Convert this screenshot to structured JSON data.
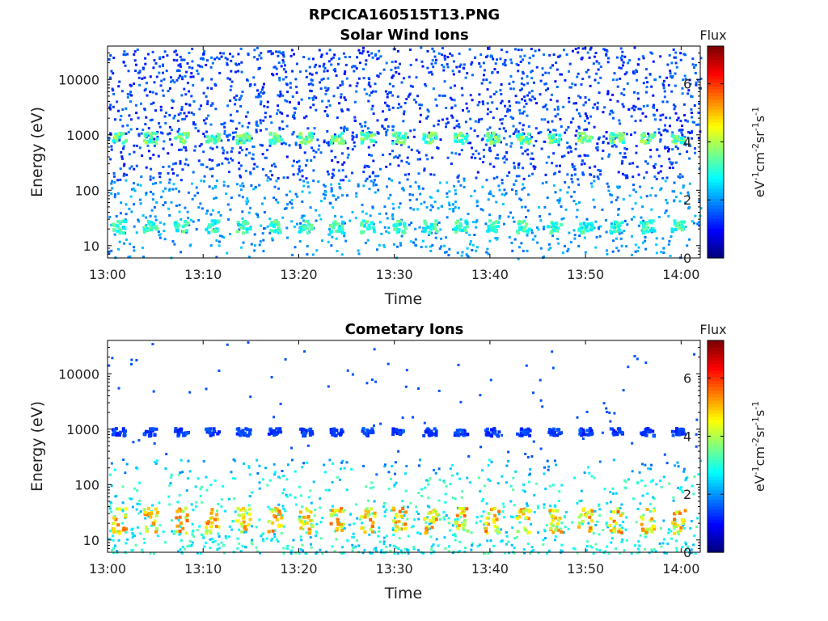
{
  "figure_title": "RPCICA160515T13.PNG",
  "chart_data": [
    {
      "type": "heatmap",
      "title": "Solar Wind Ions",
      "xlabel": "Time",
      "ylabel": "Energy (eV)",
      "y_scale": "log",
      "xlim": [
        "13:00",
        "14:02"
      ],
      "ylim": [
        6,
        40000
      ],
      "x_ticks": [
        "13:00",
        "13:10",
        "13:20",
        "13:30",
        "13:40",
        "13:50",
        "14:00"
      ],
      "y_ticks": [
        "10",
        "100",
        "1000",
        "10000"
      ],
      "y_tick_values": [
        10,
        100,
        1000,
        10000
      ],
      "colorbar": {
        "title": "Flux",
        "label": {
          "base": "eV",
          "sup1": "-1",
          "mid1": "cm",
          "sup2": "-2",
          "mid2": "sr",
          "sup3": "-1",
          "mid3": "s",
          "sup4": "-1"
        },
        "range": [
          0,
          7.3
        ],
        "ticks": [
          "0",
          "2",
          "4",
          "6"
        ],
        "tick_values": [
          0,
          2,
          4,
          6
        ],
        "colormap": "jet"
      },
      "features": {
        "sweep_period_min": 3.25,
        "bands": [
          {
            "energy_low": 750,
            "energy_high": 1150,
            "flux": 3.6,
            "note": "recurring solar wind proton peak"
          },
          {
            "energy_low": 18,
            "energy_high": 30,
            "flux": 3.2
          }
        ],
        "background_flux": 1.4,
        "background_extent": [
          6,
          40000
        ]
      }
    },
    {
      "type": "heatmap",
      "title": "Cometary Ions",
      "xlabel": "Time",
      "ylabel": "Energy (eV)",
      "y_scale": "log",
      "xlim": [
        "13:00",
        "14:02"
      ],
      "ylim": [
        6,
        40000
      ],
      "x_ticks": [
        "13:00",
        "13:10",
        "13:20",
        "13:30",
        "13:40",
        "13:50",
        "14:00"
      ],
      "y_ticks": [
        "10",
        "100",
        "1000",
        "10000"
      ],
      "y_tick_values": [
        10,
        100,
        1000,
        10000
      ],
      "colorbar": {
        "title": "Flux",
        "label": {
          "base": "eV",
          "sup1": "-1",
          "mid1": "cm",
          "sup2": "-2",
          "mid2": "sr",
          "sup3": "-1",
          "mid3": "s",
          "sup4": "-1"
        },
        "range": [
          0,
          7.3
        ],
        "ticks": [
          "0",
          "2",
          "4",
          "6"
        ],
        "tick_values": [
          0,
          2,
          4,
          6
        ],
        "colormap": "jet"
      },
      "features": {
        "sweep_period_min": 3.25,
        "bands": [
          {
            "energy_low": 14,
            "energy_high": 40,
            "flux": 5.0,
            "note": "recurring low-energy cometary ion peak"
          },
          {
            "energy_low": 800,
            "energy_high": 1100,
            "flux": 1.4
          }
        ],
        "background_flux": 2.2,
        "background_extent": [
          6,
          300
        ]
      }
    }
  ]
}
